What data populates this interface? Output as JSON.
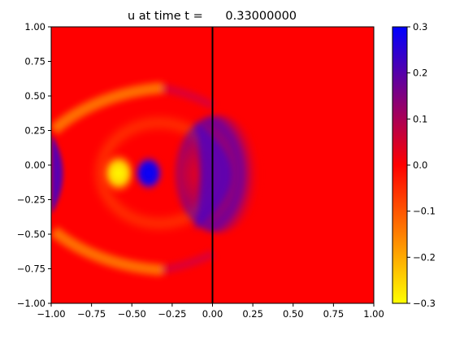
{
  "chart_data": {
    "type": "heatmap",
    "title": "u at time t =      0.33000000",
    "xlabel": "",
    "ylabel": "",
    "xlim": [
      -1.0,
      1.0
    ],
    "ylim": [
      -1.0,
      1.0
    ],
    "x_ticks": [
      "−1.00",
      "−0.75",
      "−0.50",
      "−0.25",
      "0.00",
      "0.25",
      "0.50",
      "0.75",
      "1.00"
    ],
    "y_ticks": [
      "−1.00",
      "−0.75",
      "−0.50",
      "−0.25",
      "0.00",
      "0.25",
      "0.50",
      "0.75",
      "1.00"
    ],
    "x_tick_values": [
      -1.0,
      -0.75,
      -0.5,
      -0.25,
      0.0,
      0.25,
      0.5,
      0.75,
      1.0
    ],
    "y_tick_values": [
      -1.0,
      -0.75,
      -0.5,
      -0.25,
      0.0,
      0.25,
      0.5,
      0.75,
      1.0
    ],
    "colorbar": {
      "range": [
        -0.3,
        0.3
      ],
      "tick_labels": [
        "0.3",
        "0.2",
        "0.1",
        "0.0",
        "−0.1",
        "−0.2",
        "−0.3"
      ],
      "tick_values": [
        0.3,
        0.2,
        0.1,
        0.0,
        -0.1,
        -0.2,
        -0.3
      ],
      "colors": {
        "min": "#ffff00",
        "mid": "#ff0000",
        "max": "#0000ff"
      }
    },
    "vertical_line_x": 0.0,
    "background_value": 0.0,
    "features": [
      {
        "kind": "blob",
        "x": -0.39,
        "y": 0.03,
        "value": 0.3
      },
      {
        "kind": "blob",
        "x": -0.6,
        "y": 0.03,
        "value": -0.3
      },
      {
        "kind": "arc",
        "x": 0.1,
        "y": 0.0,
        "value": 0.2
      },
      {
        "kind": "ring",
        "x": -0.48,
        "y": 0.0,
        "value": -0.1
      }
    ]
  }
}
